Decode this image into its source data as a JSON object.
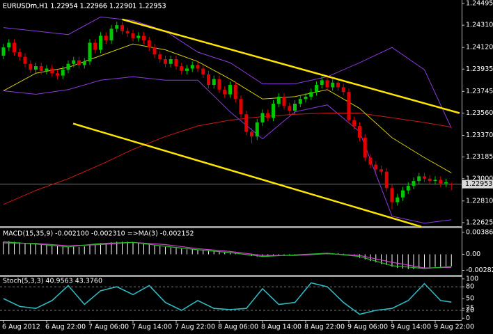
{
  "chart_data": [
    {
      "type": "candlestick",
      "title": "EURUSDm,H1  1.22954 1.22966 1.22901 1.22953",
      "categories": [
        "6 Aug 2012",
        null,
        null,
        null,
        null,
        null,
        null,
        null,
        "6 Aug 22:00",
        null,
        null,
        null,
        null,
        null,
        null,
        null,
        "7 Aug 06:00",
        null,
        null,
        null,
        null,
        null,
        null,
        null,
        "7 Aug 14:00",
        null,
        null,
        null,
        null,
        null,
        null,
        null,
        "7 Aug 22:00",
        null,
        null,
        null,
        null,
        null,
        null,
        null,
        "8 Aug 06:00",
        null,
        null,
        null,
        null,
        null,
        null,
        null,
        "8 Aug 14:00",
        null,
        null,
        null,
        null,
        null,
        null,
        null,
        "8 Aug 22:00",
        null,
        null,
        null,
        null,
        null,
        null,
        null,
        "9 Aug 06:00",
        null,
        null,
        null,
        null,
        null,
        null,
        null,
        "9 Aug 14:00",
        null,
        null,
        null,
        null,
        null,
        null,
        null,
        "9 Aug 22:00",
        null,
        null,
        null
      ],
      "open": [
        1.2405,
        1.2412,
        1.2416,
        1.2408,
        1.2404,
        1.2398,
        1.2393,
        1.2396,
        1.2392,
        1.2394,
        1.239,
        1.2388,
        1.2393,
        1.2398,
        1.2401,
        1.2397,
        1.24,
        1.2416,
        1.241,
        1.2422,
        1.2418,
        1.2428,
        1.2431,
        1.2426,
        1.2424,
        1.242,
        1.2422,
        1.2418,
        1.2412,
        1.2406,
        1.2402,
        1.2398,
        1.2402,
        1.2396,
        1.2392,
        1.2394,
        1.2397,
        1.2394,
        1.2389,
        1.238,
        1.2385,
        1.2376,
        1.2372,
        1.238,
        1.2368,
        1.2355,
        1.234,
        1.2336,
        1.2348,
        1.2356,
        1.2352,
        1.2364,
        1.237,
        1.2362,
        1.2358,
        1.2364,
        1.2368,
        1.237,
        1.2374,
        1.238,
        1.2384,
        1.2378,
        1.2382,
        1.2378,
        1.2374,
        1.235,
        1.2345,
        1.2335,
        1.2318,
        1.2312,
        1.2308,
        1.2306,
        1.2292,
        1.228,
        1.2284,
        1.229,
        1.2294,
        1.2298,
        1.2302,
        1.23,
        1.2298,
        1.2299,
        1.2296,
        1.22954
      ],
      "high": [
        1.2415,
        1.2419,
        1.2419,
        1.2411,
        1.2407,
        1.2401,
        1.2399,
        1.2399,
        1.2397,
        1.2397,
        1.2393,
        1.2396,
        1.2401,
        1.2404,
        1.2404,
        1.2403,
        1.2419,
        1.2419,
        1.2425,
        1.2425,
        1.2431,
        1.2434,
        1.2434,
        1.2429,
        1.2427,
        1.2425,
        1.2425,
        1.2421,
        1.2415,
        1.2409,
        1.2405,
        1.2405,
        1.2405,
        1.2399,
        1.2397,
        1.24,
        1.24,
        1.2397,
        1.2392,
        1.2388,
        1.2388,
        1.2379,
        1.2383,
        1.2383,
        1.2371,
        1.2358,
        1.2343,
        1.2351,
        1.2359,
        1.2359,
        1.2367,
        1.2373,
        1.2373,
        1.2365,
        1.2367,
        1.2371,
        1.2373,
        1.2377,
        1.2383,
        1.2387,
        1.2387,
        1.2385,
        1.2385,
        1.2381,
        1.2377,
        1.2353,
        1.2348,
        1.2338,
        1.2321,
        1.2315,
        1.2311,
        1.2309,
        1.2295,
        1.2287,
        1.2293,
        1.2297,
        1.2301,
        1.2305,
        1.2305,
        1.2303,
        1.2302,
        1.2302,
        1.23,
        1.22966
      ],
      "low": [
        1.2402,
        1.2409,
        1.2405,
        1.2401,
        1.2395,
        1.239,
        1.239,
        1.2389,
        1.2389,
        1.2387,
        1.2385,
        1.2385,
        1.239,
        1.2395,
        1.2394,
        1.2394,
        1.2397,
        1.2407,
        1.2407,
        1.2415,
        1.2415,
        1.2425,
        1.2423,
        1.2421,
        1.2417,
        1.2417,
        1.2415,
        1.2409,
        1.2403,
        1.2399,
        1.2395,
        1.2395,
        1.2393,
        1.2389,
        1.2389,
        1.2391,
        1.2391,
        1.2386,
        1.2377,
        1.2377,
        1.2373,
        1.2369,
        1.2369,
        1.2365,
        1.2352,
        1.2337,
        1.233,
        1.2333,
        1.2345,
        1.2349,
        1.2349,
        1.2361,
        1.2359,
        1.2355,
        1.2355,
        1.2361,
        1.2365,
        1.2367,
        1.2371,
        1.2377,
        1.2375,
        1.2375,
        1.2375,
        1.2371,
        1.2347,
        1.2342,
        1.2332,
        1.2315,
        1.2309,
        1.2305,
        1.2303,
        1.2289,
        1.2274,
        1.2277,
        1.2281,
        1.2287,
        1.2291,
        1.2295,
        1.2297,
        1.2295,
        1.2295,
        1.2293,
        1.2293,
        1.22901
      ],
      "close": [
        1.2412,
        1.2416,
        1.2408,
        1.2404,
        1.2398,
        1.2393,
        1.2396,
        1.2392,
        1.2394,
        1.239,
        1.2388,
        1.2393,
        1.2398,
        1.2401,
        1.2397,
        1.24,
        1.2416,
        1.241,
        1.2422,
        1.2418,
        1.2428,
        1.2431,
        1.2426,
        1.2424,
        1.242,
        1.2422,
        1.2418,
        1.2412,
        1.2406,
        1.2402,
        1.2398,
        1.2402,
        1.2396,
        1.2392,
        1.2394,
        1.2397,
        1.2394,
        1.2389,
        1.238,
        1.2385,
        1.2376,
        1.2372,
        1.238,
        1.2368,
        1.2355,
        1.234,
        1.2336,
        1.2348,
        1.2356,
        1.2352,
        1.2364,
        1.237,
        1.2362,
        1.2358,
        1.2364,
        1.2368,
        1.237,
        1.2374,
        1.238,
        1.2384,
        1.2378,
        1.2382,
        1.2378,
        1.2374,
        1.235,
        1.2345,
        1.2335,
        1.2318,
        1.2312,
        1.2308,
        1.2306,
        1.2292,
        1.228,
        1.2284,
        1.229,
        1.2294,
        1.2298,
        1.2302,
        1.23,
        1.2298,
        1.2299,
        1.2296,
        1.2297,
        1.22953
      ],
      "up_color": "#00c800",
      "down_color": "#e00000",
      "lines": [
        {
          "color": "#8a3ce0",
          "x": [
            0,
            6,
            12,
            18,
            24,
            30,
            36,
            42,
            48,
            54,
            60,
            66,
            72,
            78,
            83
          ],
          "values": [
            1.2429,
            1.2426,
            1.2423,
            1.2438,
            1.2435,
            1.2426,
            1.2408,
            1.2399,
            1.2381,
            1.2381,
            1.2387,
            1.2399,
            1.2412,
            1.2393,
            1.2343
          ]
        },
        {
          "color": "#8a3ce0",
          "x": [
            0,
            6,
            12,
            18,
            24,
            30,
            36,
            42,
            48,
            54,
            60,
            66,
            72,
            78,
            83
          ],
          "values": [
            1.2375,
            1.2372,
            1.2376,
            1.2384,
            1.2387,
            1.2384,
            1.2384,
            1.2357,
            1.2334,
            1.2357,
            1.2363,
            1.234,
            1.2268,
            1.2262,
            1.2265
          ]
        },
        {
          "color": "#d01818",
          "x": [
            0,
            6,
            12,
            18,
            24,
            30,
            36,
            42,
            48,
            54,
            60,
            66,
            72,
            78,
            83
          ],
          "values": [
            1.2278,
            1.229,
            1.23,
            1.2312,
            1.2325,
            1.2336,
            1.2345,
            1.235,
            1.2353,
            1.2355,
            1.2356,
            1.2356,
            1.2352,
            1.2348,
            1.2344
          ]
        },
        {
          "color": "#d8d000",
          "x": [
            0,
            6,
            12,
            18,
            24,
            30,
            36,
            42,
            48,
            54,
            60,
            66,
            72,
            78,
            83
          ],
          "values": [
            1.2375,
            1.239,
            1.2395,
            1.2405,
            1.2415,
            1.241,
            1.24,
            1.2385,
            1.2368,
            1.237,
            1.2376,
            1.236,
            1.2335,
            1.2318,
            1.2305
          ]
        }
      ],
      "channels": [
        {
          "color": "#ffe600",
          "x": [
            22,
            84.5
          ],
          "values": [
            1.2436,
            1.2356
          ]
        },
        {
          "color": "#ffe600",
          "x": [
            12.9,
            77.4
          ],
          "values": [
            1.2347,
            1.2259
          ]
        }
      ],
      "last_price": 1.22953,
      "ylim": [
        1.22595,
        1.24513
      ],
      "yticks": [
        1.24495,
        {
          "value": 1.2431,
          "label": "1.24310"
        },
        {
          "value": 1.2412,
          "label": "1.24120"
        },
        1.23935,
        1.23745,
        {
          "value": 1.2356,
          "label": "1.23560"
        },
        {
          "value": 1.2337,
          "label": "1.23370"
        },
        1.23185,
        {
          "value": 1.23,
          "label": "1.23000"
        },
        {
          "value": 1.2281,
          "label": "1.22810"
        },
        1.22625
      ]
    },
    {
      "type": "macd",
      "title": "MACD(15,35,9) -0.002100 -0.002310 =>MA(3) -0.002152",
      "values": [
        0.0022,
        0.0023,
        0.0022,
        0.0021,
        0.002,
        0.0019,
        0.0018,
        0.0017,
        0.0016,
        0.0015,
        0.0014,
        0.0014,
        0.0013,
        0.0013,
        0.0013,
        0.0014,
        0.0016,
        0.0017,
        0.0019,
        0.002,
        0.0021,
        0.0022,
        0.0022,
        0.0022,
        0.0021,
        0.002,
        0.0019,
        0.0018,
        0.0016,
        0.0015,
        0.0013,
        0.0012,
        0.0011,
        0.001,
        0.0009,
        0.0009,
        0.0008,
        0.0007,
        0.0006,
        0.0005,
        0.0004,
        0.0003,
        0.0003,
        0.0002,
        0.0001,
        -0.0001,
        -0.0003,
        -0.0004,
        -0.0004,
        -0.0004,
        -0.0003,
        -0.0002,
        -0.0002,
        -0.0001,
        -0.0001,
        0.0,
        0.0,
        0.0001,
        0.0001,
        0.0002,
        0.0002,
        0.0002,
        0.0002,
        0.0001,
        -0.0001,
        -0.0003,
        -0.0006,
        -0.0009,
        -0.0012,
        -0.0014,
        -0.0017,
        -0.0019,
        -0.0022,
        -0.0024,
        -0.0025,
        -0.0026,
        -0.0026,
        -0.0025,
        -0.0024,
        -0.0023,
        -0.0022,
        -0.0022,
        -0.0021,
        -0.0021
      ],
      "color": "#ffffff",
      "series": [
        {
          "color": "#d040d0",
          "x": [
            0,
            6,
            12,
            18,
            24,
            30,
            36,
            42,
            48,
            54,
            60,
            66,
            72,
            78,
            83
          ],
          "values": [
            0.002,
            0.0019,
            0.0015,
            0.0017,
            0.0021,
            0.0017,
            0.001,
            0.0005,
            -0.0002,
            -0.0002,
            0.0001,
            -0.0002,
            -0.0014,
            -0.0024,
            -0.00231
          ]
        },
        {
          "color": "#20c020",
          "x": [
            0,
            6,
            12,
            18,
            24,
            30,
            36,
            42,
            48,
            54,
            60,
            66,
            72,
            78,
            83
          ],
          "values": [
            0.0022,
            0.0018,
            0.0013,
            0.0019,
            0.0021,
            0.0014,
            0.0008,
            0.0003,
            -0.0004,
            -0.0001,
            0.0002,
            -0.0004,
            -0.002,
            -0.0025,
            -0.002152
          ]
        }
      ],
      "ylim": [
        -0.00386,
        0.00458
      ],
      "yticks": [
        0.00386,
        {
          "value": 0,
          "label": "0.00"
        },
        -0.00282
      ]
    },
    {
      "type": "stochastic",
      "title": "Stoch(5,3,3) 40.9563 43.3760",
      "series": [
        {
          "color": "#30b8c0",
          "x": [
            0,
            3,
            6,
            9,
            12,
            15,
            18,
            21,
            24,
            27,
            30,
            33,
            36,
            39,
            42,
            45,
            48,
            51,
            54,
            57,
            60,
            63,
            66,
            69,
            72,
            75,
            78,
            81,
            83
          ],
          "values": [
            50,
            30,
            25,
            45,
            83,
            35,
            70,
            80,
            60,
            83,
            40,
            20,
            45,
            25,
            22,
            25,
            75,
            35,
            40,
            90,
            80,
            40,
            10,
            20,
            25,
            45,
            88,
            45,
            40.9563
          ]
        }
      ],
      "levels": [
        80,
        20
      ],
      "ylim": [
        -3,
        105
      ],
      "yticks": [
        100,
        80,
        50,
        25,
        20,
        0
      ]
    }
  ]
}
